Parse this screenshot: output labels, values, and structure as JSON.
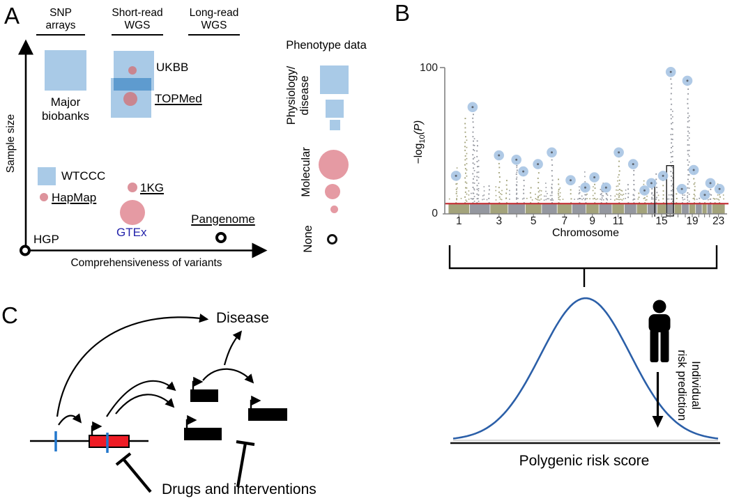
{
  "panel_a": {
    "panel_label": "A",
    "columns": [
      {
        "line1": "SNP",
        "line2": "arrays"
      },
      {
        "line1": "Short-read",
        "line2": "WGS"
      },
      {
        "line1": "Long-read",
        "line2": "WGS"
      }
    ],
    "y_axis_label": "Sample size",
    "x_axis_label": "Comprehensiveness of variants",
    "datasets": {
      "major_biobanks": {
        "line1": "Major",
        "line2": "biobanks"
      },
      "ukbb": "UKBB",
      "topmed": "TOPMed",
      "wtccc": "WTCCC",
      "hapmap": "HapMap",
      "onekg": "1KG",
      "gtex": "GTEx",
      "pangenome": "Pangenome",
      "hgp": "HGP"
    },
    "legend": {
      "title": "Phenotype data",
      "physiology": {
        "line1": "Physiology/",
        "line2": "disease"
      },
      "molecular": "Molecular",
      "none": "None"
    },
    "colors": {
      "square_blue": "#a9cae7",
      "overlap_blue": "#5e9bcf",
      "dot_pink_dark": "#c9858f",
      "dot_pink": "#dd939c",
      "dot_pink_light": "#e59aa3",
      "gtex_text": "#2222aa"
    }
  },
  "panel_b": {
    "panel_label": "B",
    "chart_data": {
      "type": "scatter",
      "subtype": "manhattan",
      "xlabel": "Chromosome",
      "ylabel": "-log10(P)",
      "ylabel_parts": {
        "pre": "−log",
        "sub": "10",
        "suf": "(P)"
      },
      "ylim": [
        0,
        100
      ],
      "yticks": [
        0,
        100
      ],
      "xtick_labels": [
        "1",
        "3",
        "5",
        "7",
        "9",
        "11",
        "15",
        "19",
        "23"
      ],
      "xtick_chroms": [
        1,
        3,
        5,
        7,
        9,
        11,
        15,
        19,
        23
      ],
      "n_chromosomes": 23,
      "chrom_weights": [
        26,
        25,
        22,
        21,
        20,
        19,
        18,
        17,
        16,
        16,
        15,
        15,
        13,
        12,
        11,
        10,
        9,
        9,
        8,
        8,
        6,
        6,
        16
      ],
      "point_colors": [
        "#a3a37b",
        "#94979f"
      ],
      "lead_snp_color": "#a9c6e4",
      "threshold_value": 7,
      "threshold_color": "#c1272d",
      "lead_hits": [
        {
          "f": 0.028,
          "v": 26
        },
        {
          "f": 0.088,
          "v": 73
        },
        {
          "f": 0.183,
          "v": 40
        },
        {
          "f": 0.246,
          "v": 37
        },
        {
          "f": 0.271,
          "v": 29
        },
        {
          "f": 0.324,
          "v": 34
        },
        {
          "f": 0.374,
          "v": 42
        },
        {
          "f": 0.442,
          "v": 23
        },
        {
          "f": 0.495,
          "v": 18
        },
        {
          "f": 0.528,
          "v": 25
        },
        {
          "f": 0.57,
          "v": 18
        },
        {
          "f": 0.616,
          "v": 42
        },
        {
          "f": 0.668,
          "v": 34
        },
        {
          "f": 0.709,
          "v": 16
        },
        {
          "f": 0.734,
          "v": 21
        },
        {
          "f": 0.776,
          "v": 26
        },
        {
          "f": 0.804,
          "v": 97
        },
        {
          "f": 0.844,
          "v": 17
        },
        {
          "f": 0.864,
          "v": 91
        },
        {
          "f": 0.887,
          "v": 30
        },
        {
          "f": 0.927,
          "v": 13
        },
        {
          "f": 0.947,
          "v": 21
        },
        {
          "f": 0.98,
          "v": 17
        }
      ],
      "extra_spikes": [
        {
          "f": 0.06,
          "v": 68
        },
        {
          "f": 0.103,
          "v": 52
        },
        {
          "f": 0.146,
          "v": 22
        },
        {
          "f": 0.209,
          "v": 25
        },
        {
          "f": 0.296,
          "v": 22
        },
        {
          "f": 0.397,
          "v": 26
        },
        {
          "f": 0.472,
          "v": 18
        },
        {
          "f": 0.553,
          "v": 20
        },
        {
          "f": 0.648,
          "v": 24
        },
        {
          "f": 0.688,
          "v": 18
        },
        {
          "f": 0.751,
          "v": 30
        },
        {
          "f": 0.824,
          "v": 20
        },
        {
          "f": 0.907,
          "v": 15
        },
        {
          "f": 0.962,
          "v": 14
        }
      ],
      "locus_box": {
        "f0": 0.789,
        "f1": 0.814,
        "v_top": 33
      },
      "marker_line": {
        "f": 0.746,
        "v_top": 23
      }
    },
    "prs": {
      "curve_color": "#2b5fa8",
      "xlabel": "Polygenic risk score",
      "annotation": {
        "line1": "Individual",
        "line2": "risk prediction"
      }
    }
  },
  "panel_c": {
    "panel_label": "C",
    "labels": {
      "disease": "Disease",
      "drugs": "Drugs and interventions"
    },
    "colors": {
      "gene_red": "#ee1c25",
      "variant_blue": "#2277cc"
    }
  }
}
